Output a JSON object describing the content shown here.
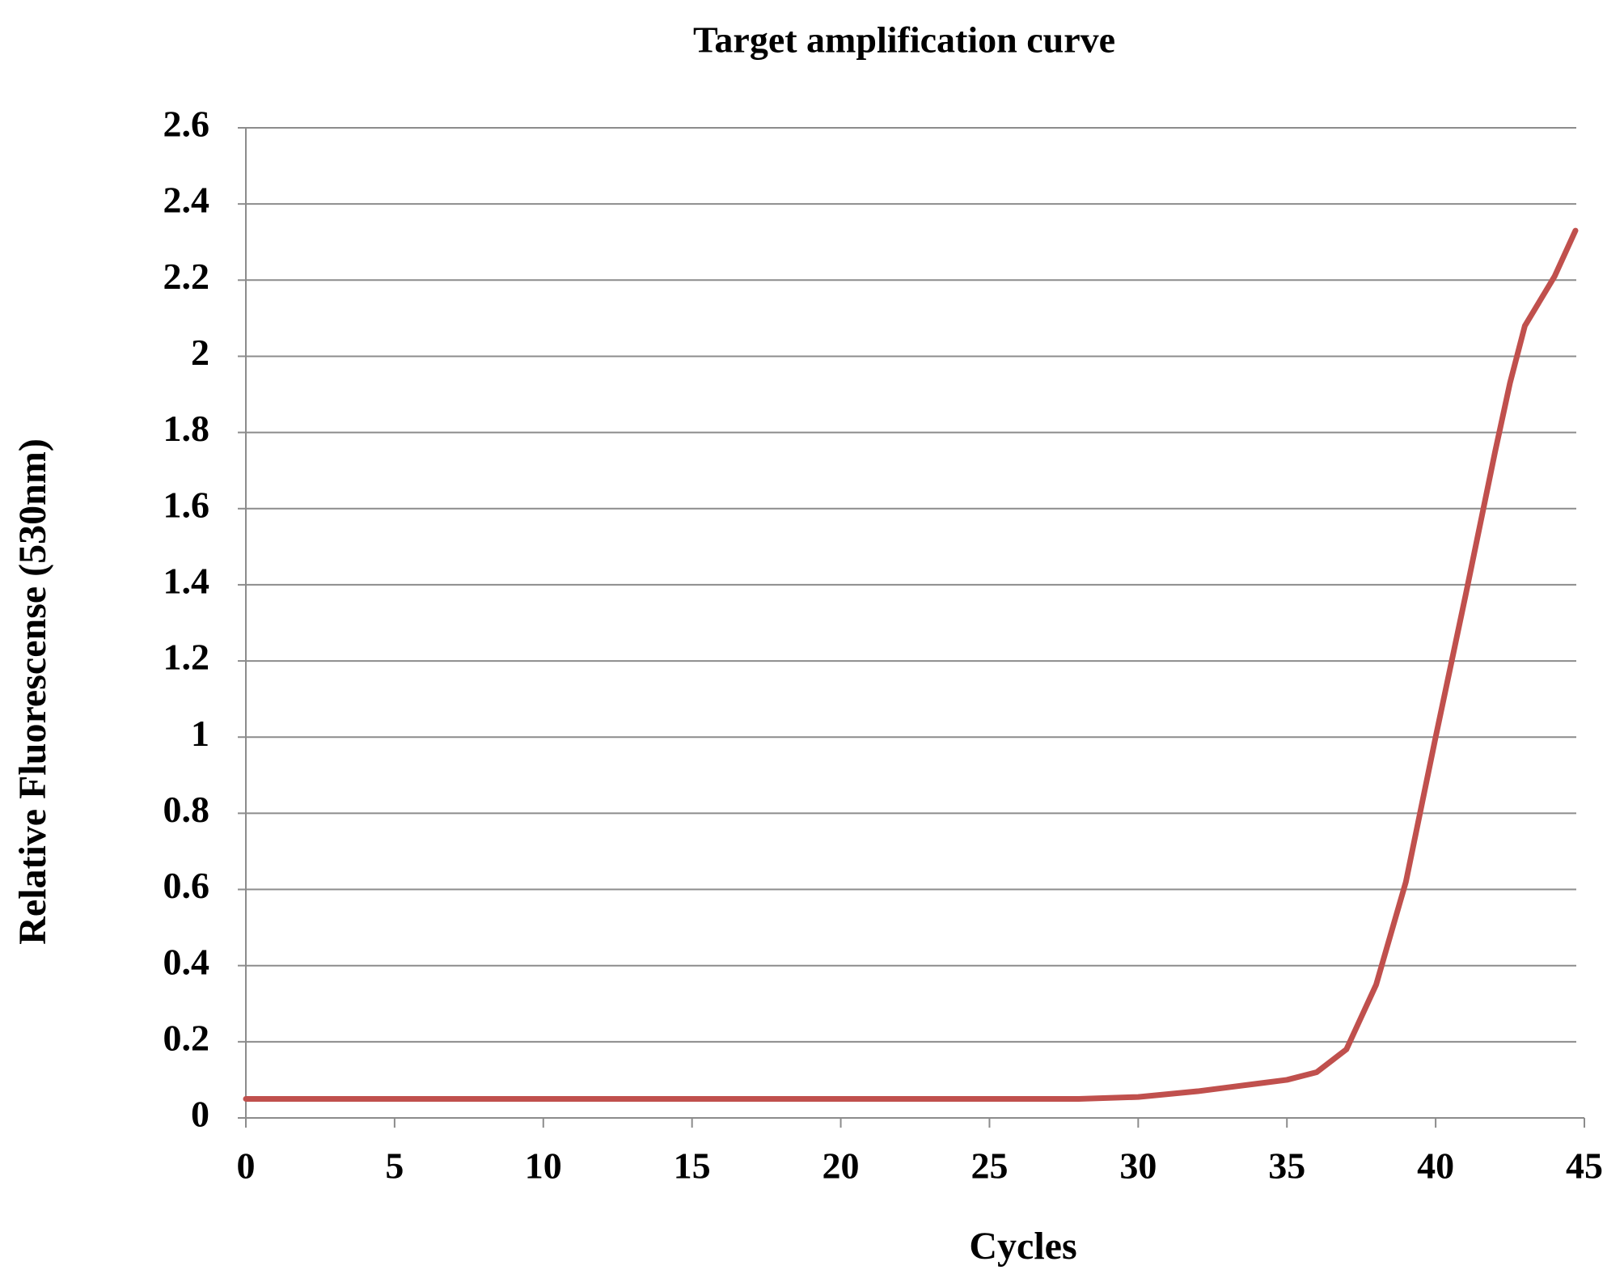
{
  "chart_data": {
    "type": "line",
    "title": "Target amplification curve",
    "x_label": "Cycles",
    "y_label": "Relative  Fluorescense (530nm)",
    "x": [
      0,
      5,
      10,
      15,
      20,
      25,
      28,
      30,
      32,
      34,
      35,
      36,
      37,
      38,
      39,
      40,
      41,
      42,
      42.5,
      43,
      44,
      44.7
    ],
    "series": [
      {
        "color": "#c0504d",
        "values": [
          0.05,
          0.05,
          0.05,
          0.05,
          0.05,
          0.05,
          0.05,
          0.055,
          0.07,
          0.09,
          0.1,
          0.12,
          0.18,
          0.35,
          0.62,
          1.0,
          1.37,
          1.75,
          1.93,
          2.08,
          2.21,
          2.33
        ]
      }
    ],
    "xlim": [
      0,
      45
    ],
    "xticks": [
      0,
      5,
      10,
      15,
      20,
      25,
      30,
      35,
      40,
      45
    ],
    "ylim": [
      0,
      2.6
    ],
    "yticks": [
      0,
      0.2,
      0.4,
      0.6,
      0.8,
      1,
      1.2,
      1.4,
      1.6,
      1.8,
      2,
      2.2,
      2.4,
      2.6
    ],
    "grid": true
  }
}
